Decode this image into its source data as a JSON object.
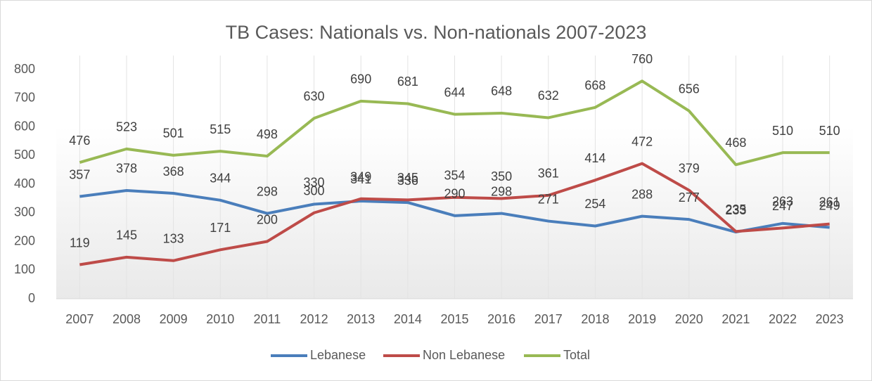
{
  "chart_data": {
    "type": "line",
    "title": "TB Cases: Nationals vs. Non-nationals 2007-2023",
    "categories": [
      "2007",
      "2008",
      "2009",
      "2010",
      "2011",
      "2012",
      "2013",
      "2014",
      "2015",
      "2016",
      "2017",
      "2018",
      "2019",
      "2020",
      "2021",
      "2022",
      "2023"
    ],
    "series": [
      {
        "name": "Lebanese",
        "color": "#4a7ebb",
        "values": [
          357,
          378,
          368,
          344,
          298,
          330,
          341,
          336,
          290,
          298,
          271,
          254,
          288,
          277,
          233,
          263,
          249
        ]
      },
      {
        "name": "Non Lebanese",
        "color": "#be4b48",
        "values": [
          119,
          145,
          133,
          171,
          200,
          300,
          349,
          345,
          354,
          350,
          361,
          414,
          472,
          379,
          235,
          247,
          261
        ]
      },
      {
        "name": "Total",
        "color": "#98b954",
        "values": [
          476,
          523,
          501,
          515,
          498,
          630,
          690,
          681,
          644,
          648,
          632,
          668,
          760,
          656,
          468,
          510,
          510
        ]
      }
    ],
    "ylim": [
      0,
      800
    ],
    "yticks": [
      0,
      100,
      200,
      300,
      400,
      500,
      600,
      700,
      800
    ],
    "grid": true,
    "legend": "bottom"
  }
}
